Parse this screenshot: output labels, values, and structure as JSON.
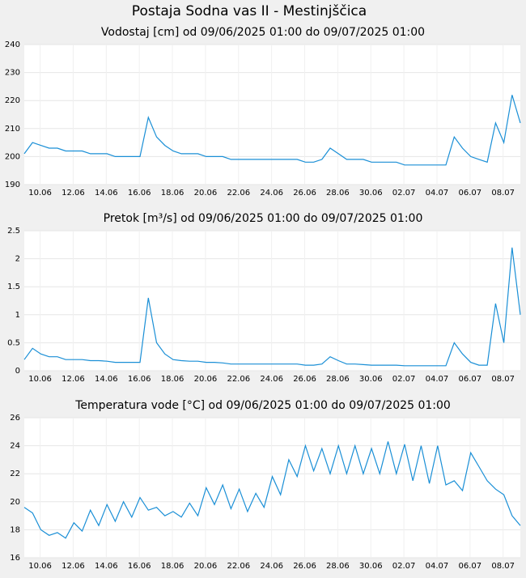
{
  "title": "Postaja Sodna vas II - Mestinjščica",
  "chart_data": [
    {
      "type": "line",
      "title": "Vodostaj [cm] od 09/06/2025 01:00 do 09/07/2025 01:00",
      "color": "#1a8fd6",
      "grid": true,
      "xlim": [
        "2025-06-09T01:00",
        "2025-07-09T01:00"
      ],
      "ylim": [
        190,
        240
      ],
      "yticks": [
        190,
        200,
        210,
        220,
        230,
        240
      ],
      "xticks": [
        {
          "value": "2025-06-10T00:00",
          "label": "10.06"
        },
        {
          "value": "2025-06-12T00:00",
          "label": "12.06"
        },
        {
          "value": "2025-06-14T00:00",
          "label": "14.06"
        },
        {
          "value": "2025-06-16T00:00",
          "label": "16.06"
        },
        {
          "value": "2025-06-18T00:00",
          "label": "18.06"
        },
        {
          "value": "2025-06-20T00:00",
          "label": "20.06"
        },
        {
          "value": "2025-06-22T00:00",
          "label": "22.06"
        },
        {
          "value": "2025-06-24T00:00",
          "label": "24.06"
        },
        {
          "value": "2025-06-26T00:00",
          "label": "26.06"
        },
        {
          "value": "2025-06-28T00:00",
          "label": "28.06"
        },
        {
          "value": "2025-06-30T00:00",
          "label": "30.06"
        },
        {
          "value": "2025-07-02T00:00",
          "label": "02.07"
        },
        {
          "value": "2025-07-04T00:00",
          "label": "04.07"
        },
        {
          "value": "2025-07-06T00:00",
          "label": "06.07"
        },
        {
          "value": "2025-07-08T00:00",
          "label": "08.07"
        }
      ],
      "x": [
        "2025-06-09T01:00",
        "2025-06-09T13:00",
        "2025-06-10T01:00",
        "2025-06-10T13:00",
        "2025-06-11T01:00",
        "2025-06-11T13:00",
        "2025-06-12T01:00",
        "2025-06-12T13:00",
        "2025-06-13T01:00",
        "2025-06-13T13:00",
        "2025-06-14T01:00",
        "2025-06-14T13:00",
        "2025-06-15T01:00",
        "2025-06-15T13:00",
        "2025-06-16T01:00",
        "2025-06-16T13:00",
        "2025-06-17T01:00",
        "2025-06-17T13:00",
        "2025-06-18T01:00",
        "2025-06-18T13:00",
        "2025-06-19T01:00",
        "2025-06-19T13:00",
        "2025-06-20T01:00",
        "2025-06-20T13:00",
        "2025-06-21T01:00",
        "2025-06-21T13:00",
        "2025-06-22T01:00",
        "2025-06-22T13:00",
        "2025-06-23T01:00",
        "2025-06-23T13:00",
        "2025-06-24T01:00",
        "2025-06-24T13:00",
        "2025-06-25T01:00",
        "2025-06-25T13:00",
        "2025-06-26T01:00",
        "2025-06-26T13:00",
        "2025-06-27T01:00",
        "2025-06-27T13:00",
        "2025-06-28T01:00",
        "2025-06-28T13:00",
        "2025-06-29T01:00",
        "2025-06-29T13:00",
        "2025-06-30T01:00",
        "2025-06-30T13:00",
        "2025-07-01T01:00",
        "2025-07-01T13:00",
        "2025-07-02T01:00",
        "2025-07-02T13:00",
        "2025-07-03T01:00",
        "2025-07-03T13:00",
        "2025-07-04T01:00",
        "2025-07-04T13:00",
        "2025-07-05T01:00",
        "2025-07-05T13:00",
        "2025-07-06T01:00",
        "2025-07-06T13:00",
        "2025-07-07T01:00",
        "2025-07-07T13:00",
        "2025-07-08T01:00",
        "2025-07-08T13:00",
        "2025-07-09T01:00"
      ],
      "values": [
        201,
        205,
        204,
        203,
        203,
        202,
        202,
        202,
        201,
        201,
        201,
        200,
        200,
        200,
        200,
        214,
        207,
        204,
        202,
        201,
        201,
        201,
        200,
        200,
        200,
        199,
        199,
        199,
        199,
        199,
        199,
        199,
        199,
        199,
        198,
        198,
        199,
        203,
        201,
        199,
        199,
        199,
        198,
        198,
        198,
        198,
        197,
        197,
        197,
        197,
        197,
        197,
        207,
        203,
        200,
        199,
        198,
        212,
        205,
        222,
        212
      ]
    },
    {
      "type": "line",
      "title": "Pretok [m³/s] od 09/06/2025 01:00 do 09/07/2025 01:00",
      "color": "#1a8fd6",
      "grid": true,
      "xlim": [
        "2025-06-09T01:00",
        "2025-07-09T01:00"
      ],
      "ylim": [
        0,
        2.5
      ],
      "yticks": [
        0,
        0.5,
        1,
        1.5,
        2,
        2.5
      ],
      "xticks": [
        {
          "value": "2025-06-10T00:00",
          "label": "10.06"
        },
        {
          "value": "2025-06-12T00:00",
          "label": "12.06"
        },
        {
          "value": "2025-06-14T00:00",
          "label": "14.06"
        },
        {
          "value": "2025-06-16T00:00",
          "label": "16.06"
        },
        {
          "value": "2025-06-18T00:00",
          "label": "18.06"
        },
        {
          "value": "2025-06-20T00:00",
          "label": "20.06"
        },
        {
          "value": "2025-06-22T00:00",
          "label": "22.06"
        },
        {
          "value": "2025-06-24T00:00",
          "label": "24.06"
        },
        {
          "value": "2025-06-26T00:00",
          "label": "26.06"
        },
        {
          "value": "2025-06-28T00:00",
          "label": "28.06"
        },
        {
          "value": "2025-06-30T00:00",
          "label": "30.06"
        },
        {
          "value": "2025-07-02T00:00",
          "label": "02.07"
        },
        {
          "value": "2025-07-04T00:00",
          "label": "04.07"
        },
        {
          "value": "2025-07-06T00:00",
          "label": "06.07"
        },
        {
          "value": "2025-07-08T00:00",
          "label": "08.07"
        }
      ],
      "x": [
        "2025-06-09T01:00",
        "2025-06-09T13:00",
        "2025-06-10T01:00",
        "2025-06-10T13:00",
        "2025-06-11T01:00",
        "2025-06-11T13:00",
        "2025-06-12T01:00",
        "2025-06-12T13:00",
        "2025-06-13T01:00",
        "2025-06-13T13:00",
        "2025-06-14T01:00",
        "2025-06-14T13:00",
        "2025-06-15T01:00",
        "2025-06-15T13:00",
        "2025-06-16T01:00",
        "2025-06-16T13:00",
        "2025-06-17T01:00",
        "2025-06-17T13:00",
        "2025-06-18T01:00",
        "2025-06-18T13:00",
        "2025-06-19T01:00",
        "2025-06-19T13:00",
        "2025-06-20T01:00",
        "2025-06-20T13:00",
        "2025-06-21T01:00",
        "2025-06-21T13:00",
        "2025-06-22T01:00",
        "2025-06-22T13:00",
        "2025-06-23T01:00",
        "2025-06-23T13:00",
        "2025-06-24T01:00",
        "2025-06-24T13:00",
        "2025-06-25T01:00",
        "2025-06-25T13:00",
        "2025-06-26T01:00",
        "2025-06-26T13:00",
        "2025-06-27T01:00",
        "2025-06-27T13:00",
        "2025-06-28T01:00",
        "2025-06-28T13:00",
        "2025-06-29T01:00",
        "2025-06-29T13:00",
        "2025-06-30T01:00",
        "2025-06-30T13:00",
        "2025-07-01T01:00",
        "2025-07-01T13:00",
        "2025-07-02T01:00",
        "2025-07-02T13:00",
        "2025-07-03T01:00",
        "2025-07-03T13:00",
        "2025-07-04T01:00",
        "2025-07-04T13:00",
        "2025-07-05T01:00",
        "2025-07-05T13:00",
        "2025-07-06T01:00",
        "2025-07-06T13:00",
        "2025-07-07T01:00",
        "2025-07-07T13:00",
        "2025-07-08T01:00",
        "2025-07-08T13:00",
        "2025-07-09T01:00"
      ],
      "values": [
        0.2,
        0.4,
        0.3,
        0.25,
        0.25,
        0.2,
        0.2,
        0.2,
        0.18,
        0.18,
        0.17,
        0.15,
        0.15,
        0.15,
        0.15,
        1.3,
        0.5,
        0.3,
        0.2,
        0.18,
        0.17,
        0.17,
        0.15,
        0.15,
        0.14,
        0.12,
        0.12,
        0.12,
        0.12,
        0.12,
        0.12,
        0.12,
        0.12,
        0.12,
        0.1,
        0.1,
        0.12,
        0.25,
        0.18,
        0.12,
        0.12,
        0.11,
        0.1,
        0.1,
        0.1,
        0.1,
        0.09,
        0.09,
        0.09,
        0.09,
        0.09,
        0.09,
        0.5,
        0.3,
        0.15,
        0.1,
        0.1,
        1.2,
        0.5,
        2.2,
        1.0
      ]
    },
    {
      "type": "line",
      "title": "Temperatura vode [°C] od 09/06/2025 01:00 do 09/07/2025 01:00",
      "color": "#1a8fd6",
      "grid": true,
      "xlim": [
        "2025-06-09T01:00",
        "2025-07-09T01:00"
      ],
      "ylim": [
        16,
        26
      ],
      "yticks": [
        16,
        18,
        20,
        22,
        24,
        26
      ],
      "xticks": [
        {
          "value": "2025-06-10T00:00",
          "label": "10.06"
        },
        {
          "value": "2025-06-12T00:00",
          "label": "12.06"
        },
        {
          "value": "2025-06-14T00:00",
          "label": "14.06"
        },
        {
          "value": "2025-06-16T00:00",
          "label": "16.06"
        },
        {
          "value": "2025-06-18T00:00",
          "label": "18.06"
        },
        {
          "value": "2025-06-20T00:00",
          "label": "20.06"
        },
        {
          "value": "2025-06-22T00:00",
          "label": "22.06"
        },
        {
          "value": "2025-06-24T00:00",
          "label": "24.06"
        },
        {
          "value": "2025-06-26T00:00",
          "label": "26.06"
        },
        {
          "value": "2025-06-28T00:00",
          "label": "28.06"
        },
        {
          "value": "2025-06-30T00:00",
          "label": "30.06"
        },
        {
          "value": "2025-07-02T00:00",
          "label": "02.07"
        },
        {
          "value": "2025-07-04T00:00",
          "label": "04.07"
        },
        {
          "value": "2025-07-06T00:00",
          "label": "06.07"
        },
        {
          "value": "2025-07-08T00:00",
          "label": "08.07"
        }
      ],
      "x": [
        "2025-06-09T01:00",
        "2025-06-09T13:00",
        "2025-06-10T01:00",
        "2025-06-10T13:00",
        "2025-06-11T01:00",
        "2025-06-11T13:00",
        "2025-06-12T01:00",
        "2025-06-12T13:00",
        "2025-06-13T01:00",
        "2025-06-13T13:00",
        "2025-06-14T01:00",
        "2025-06-14T13:00",
        "2025-06-15T01:00",
        "2025-06-15T13:00",
        "2025-06-16T01:00",
        "2025-06-16T13:00",
        "2025-06-17T01:00",
        "2025-06-17T13:00",
        "2025-06-18T01:00",
        "2025-06-18T13:00",
        "2025-06-19T01:00",
        "2025-06-19T13:00",
        "2025-06-20T01:00",
        "2025-06-20T13:00",
        "2025-06-21T01:00",
        "2025-06-21T13:00",
        "2025-06-22T01:00",
        "2025-06-22T13:00",
        "2025-06-23T01:00",
        "2025-06-23T13:00",
        "2025-06-24T01:00",
        "2025-06-24T13:00",
        "2025-06-25T01:00",
        "2025-06-25T13:00",
        "2025-06-26T01:00",
        "2025-06-26T13:00",
        "2025-06-27T01:00",
        "2025-06-27T13:00",
        "2025-06-28T01:00",
        "2025-06-28T13:00",
        "2025-06-29T01:00",
        "2025-06-29T13:00",
        "2025-06-30T01:00",
        "2025-06-30T13:00",
        "2025-07-01T01:00",
        "2025-07-01T13:00",
        "2025-07-02T01:00",
        "2025-07-02T13:00",
        "2025-07-03T01:00",
        "2025-07-03T13:00",
        "2025-07-04T01:00",
        "2025-07-04T13:00",
        "2025-07-05T01:00",
        "2025-07-05T13:00",
        "2025-07-06T01:00",
        "2025-07-06T13:00",
        "2025-07-07T01:00",
        "2025-07-07T13:00",
        "2025-07-08T01:00",
        "2025-07-08T13:00",
        "2025-07-09T01:00"
      ],
      "values": [
        19.6,
        19.2,
        18.0,
        17.6,
        17.8,
        17.4,
        18.5,
        17.9,
        19.4,
        18.3,
        19.8,
        18.6,
        20.0,
        18.9,
        20.3,
        19.4,
        19.6,
        19.0,
        19.3,
        18.9,
        19.9,
        19.0,
        21.0,
        19.8,
        21.2,
        19.5,
        20.9,
        19.3,
        20.6,
        19.6,
        21.8,
        20.5,
        23.0,
        21.8,
        24.0,
        22.2,
        23.8,
        22.0,
        24.0,
        22.0,
        24.0,
        22.0,
        23.8,
        22.0,
        24.3,
        22.0,
        24.1,
        21.5,
        24.0,
        21.3,
        24.0,
        21.2,
        21.5,
        20.8,
        23.5,
        22.5,
        21.5,
        20.9,
        20.5,
        19.0,
        18.3
      ]
    }
  ]
}
